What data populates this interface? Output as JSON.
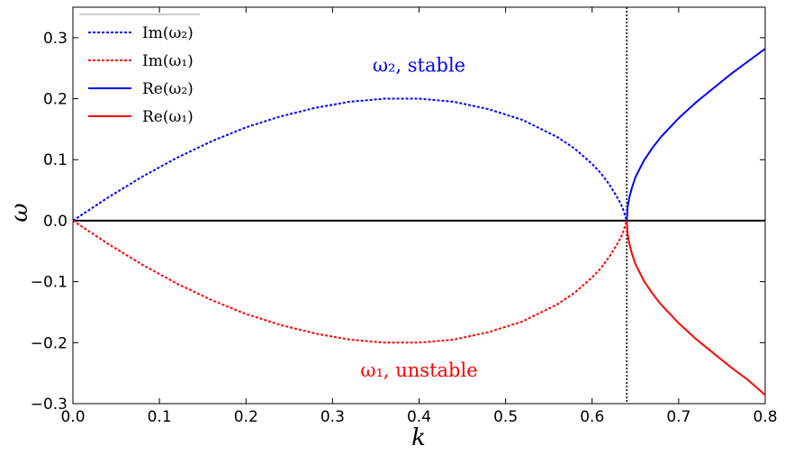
{
  "chart_data": {
    "type": "line",
    "title": "",
    "xlabel": "k",
    "ylabel": "ω",
    "xlim": [
      0.0,
      0.8
    ],
    "ylim": [
      -0.3,
      0.35
    ],
    "x_ticks": [
      "0.0",
      "0.1",
      "0.2",
      "0.3",
      "0.4",
      "0.5",
      "0.6",
      "0.7",
      "0.8"
    ],
    "y_ticks": [
      "−0.3",
      "−0.2",
      "−0.1",
      "0.0",
      "0.1",
      "0.2",
      "0.3"
    ],
    "grid": false,
    "legend_position": "top-left",
    "vertical_reference_line": {
      "x": 0.64,
      "style": "dotted",
      "color": "#000000"
    },
    "horizontal_reference_line": {
      "y": 0.0,
      "style": "solid",
      "color": "#000000"
    },
    "series": [
      {
        "name": "Im(ω2)",
        "color": "#0000ff",
        "style": "dotted",
        "x": [
          0.0,
          0.04,
          0.08,
          0.12,
          0.16,
          0.2,
          0.24,
          0.28,
          0.32,
          0.36,
          0.4,
          0.44,
          0.48,
          0.52,
          0.56,
          0.58,
          0.6,
          0.61,
          0.62,
          0.63,
          0.635,
          0.64
        ],
        "y": [
          0.0,
          0.0375,
          0.072,
          0.103,
          0.13,
          0.153,
          0.171,
          0.185,
          0.195,
          0.2,
          0.2,
          0.195,
          0.183,
          0.165,
          0.137,
          0.118,
          0.093,
          0.078,
          0.059,
          0.036,
          0.022,
          0.0
        ]
      },
      {
        "name": "Im(ω1)",
        "color": "#ff0000",
        "style": "dotted",
        "x": [
          0.0,
          0.04,
          0.08,
          0.12,
          0.16,
          0.2,
          0.24,
          0.28,
          0.32,
          0.36,
          0.4,
          0.44,
          0.48,
          0.52,
          0.56,
          0.58,
          0.6,
          0.61,
          0.62,
          0.63,
          0.635,
          0.64
        ],
        "y": [
          0.0,
          -0.0375,
          -0.072,
          -0.103,
          -0.13,
          -0.153,
          -0.171,
          -0.185,
          -0.195,
          -0.2,
          -0.2,
          -0.195,
          -0.183,
          -0.165,
          -0.137,
          -0.118,
          -0.093,
          -0.078,
          -0.059,
          -0.036,
          -0.022,
          0.0
        ]
      },
      {
        "name": "Re(ω2)",
        "color": "#0000ff",
        "style": "solid",
        "x": [
          0.64,
          0.641,
          0.643,
          0.646,
          0.65,
          0.66,
          0.67,
          0.68,
          0.7,
          0.72,
          0.74,
          0.76,
          0.78,
          0.8
        ],
        "y": [
          0.0,
          0.022,
          0.038,
          0.054,
          0.071,
          0.099,
          0.12,
          0.138,
          0.168,
          0.194,
          0.217,
          0.24,
          0.261,
          0.282
        ]
      },
      {
        "name": "Re(ω1)",
        "color": "#ff0000",
        "style": "solid",
        "x": [
          0.64,
          0.641,
          0.643,
          0.646,
          0.65,
          0.66,
          0.67,
          0.68,
          0.7,
          0.72,
          0.74,
          0.76,
          0.78,
          0.8
        ],
        "y": [
          0.0,
          -0.022,
          -0.038,
          -0.054,
          -0.071,
          -0.099,
          -0.12,
          -0.138,
          -0.168,
          -0.194,
          -0.217,
          -0.24,
          -0.261,
          -0.286
        ]
      }
    ],
    "legend_entries": [
      {
        "label": "Im(ω₂)",
        "color": "#0000ff",
        "style": "dotted"
      },
      {
        "label": "Im(ω₁)",
        "color": "#ff0000",
        "style": "dotted"
      },
      {
        "label": "Re(ω₂)",
        "color": "#0000ff",
        "style": "solid"
      },
      {
        "label": "Re(ω₁)",
        "color": "#ff0000",
        "style": "solid"
      }
    ],
    "annotations": [
      {
        "text": "ω₂, stable",
        "x": 0.4,
        "y": 0.255,
        "color": "#0000ff"
      },
      {
        "text": "ω₁, unstable",
        "x": 0.4,
        "y": -0.245,
        "color": "#ff0000"
      }
    ]
  }
}
